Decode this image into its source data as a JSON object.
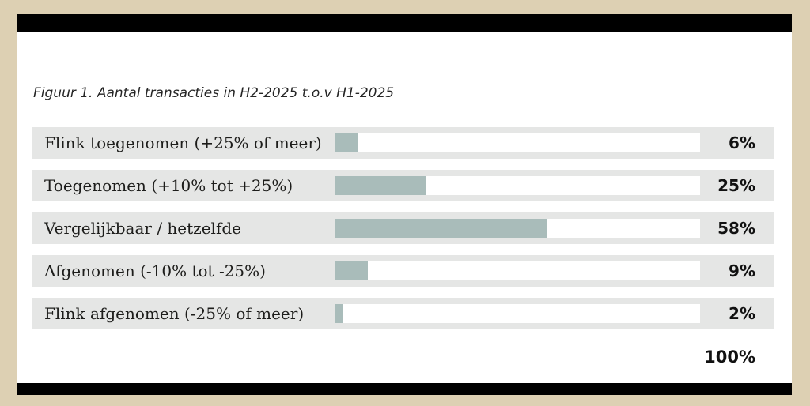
{
  "chart_data": {
    "type": "bar",
    "orientation": "horizontal",
    "title": "Figuur 1. Aantal transacties in H2-2025 t.o.v H1-2025",
    "categories": [
      "Flink toegenomen (+25% of meer)",
      "Toegenomen (+10% tot +25%)",
      "Vergelijkbaar / hetzelfde",
      "Afgenomen (-10% tot -25%)",
      "Flink afgenomen (-25% of meer)"
    ],
    "values": [
      6,
      25,
      58,
      9,
      2
    ],
    "value_labels": [
      "6%",
      "25%",
      "58%",
      "9%",
      "2%"
    ],
    "total_label": "100%",
    "xlim": [
      0,
      100
    ],
    "grid": false,
    "legend": "none",
    "colors": {
      "bar_fill": "#a9bcba",
      "bar_track": "#ffffff",
      "row_background": "#e5e6e5",
      "card_background": "#ffffff",
      "accent_bars": "#000000",
      "frame_background": "#ddd0b3",
      "text": "#1d1d1b"
    }
  }
}
